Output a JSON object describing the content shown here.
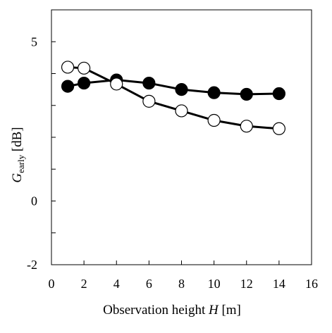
{
  "chart_data": {
    "type": "line",
    "xlabel": "Observation height H [m]",
    "xlabel_parts": {
      "prefix": "Observation height ",
      "var": "H",
      "suffix": " [m]"
    },
    "ylabel": "Gearly [dB]",
    "ylabel_parts": {
      "var": "G",
      "sub": "early",
      "suffix": " [dB]"
    },
    "xlim": [
      0,
      16
    ],
    "ylim": [
      -2,
      6
    ],
    "xticks": [
      0,
      2,
      4,
      6,
      8,
      10,
      12,
      14,
      16
    ],
    "yticks_labeled": [
      -2,
      0,
      5
    ],
    "yticks_minor": [
      -1,
      1,
      2,
      3,
      4,
      6
    ],
    "grid": false,
    "legend": "none",
    "series": [
      {
        "marker": "filled-circle",
        "color": "#000000",
        "x": [
          1,
          2,
          4,
          6,
          8,
          10,
          12,
          14
        ],
        "y": [
          3.6,
          3.7,
          3.8,
          3.7,
          3.5,
          3.4,
          3.35,
          3.37
        ]
      },
      {
        "marker": "open-circle",
        "color": "#000000",
        "x": [
          1,
          2,
          4,
          6,
          8,
          10,
          12,
          14
        ],
        "y": [
          4.2,
          4.17,
          3.67,
          3.13,
          2.83,
          2.53,
          2.35,
          2.27
        ]
      }
    ]
  }
}
